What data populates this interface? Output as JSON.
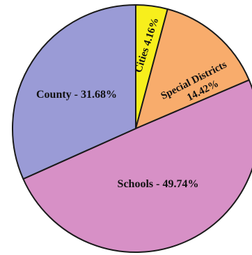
{
  "chart_data": {
    "type": "pie",
    "title": "",
    "legend": "none",
    "slices": [
      {
        "name": "Cities",
        "value": 4.16,
        "label": "Cities 4.16%",
        "color": "#f7ef1c"
      },
      {
        "name": "Special Districts",
        "value": 14.42,
        "label_line1": "Special Districts",
        "label_line2": "14.42%",
        "color": "#f8ac6c"
      },
      {
        "name": "Schools",
        "value": 49.74,
        "label": "Schools - 49.74%",
        "color": "#d790c6"
      },
      {
        "name": "County",
        "value": 31.68,
        "label": "County - 31.68%",
        "color": "#9a9bd6"
      }
    ]
  }
}
